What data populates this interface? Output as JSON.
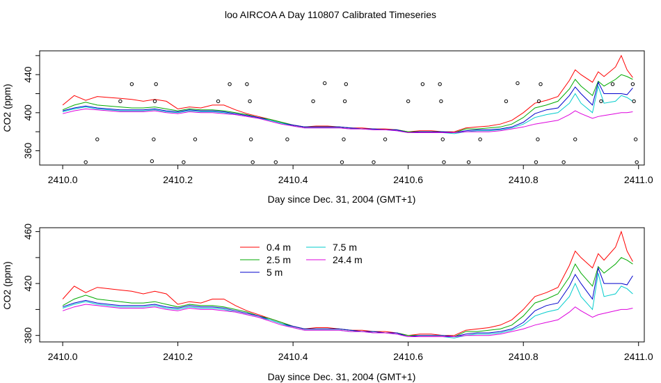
{
  "title": "loo AIRCOA A  Day 110807  Calibrated Timeseries",
  "chart_data": [
    {
      "type": "scatter",
      "xlabel": "Day since Dec. 31, 2004 (GMT+1)",
      "ylabel": "CO2 (ppm)",
      "xlim": [
        2409.96,
        2411.01
      ],
      "ylim": [
        345,
        465
      ],
      "xticks": [
        "2410.0",
        "2410.2",
        "2410.4",
        "2410.6",
        "2410.8",
        "2411.0"
      ],
      "yticks": [
        "360",
        "400",
        "440"
      ],
      "series_ref": "shared_series",
      "points": [
        [
          2410.04,
          348
        ],
        [
          2410.06,
          372
        ],
        [
          2410.1,
          412
        ],
        [
          2410.12,
          430
        ],
        [
          2410.155,
          349
        ],
        [
          2410.158,
          372
        ],
        [
          2410.16,
          412
        ],
        [
          2410.162,
          430
        ],
        [
          2410.21,
          348
        ],
        [
          2410.23,
          372
        ],
        [
          2410.27,
          412
        ],
        [
          2410.29,
          430
        ],
        [
          2410.32,
          430
        ],
        [
          2410.325,
          412
        ],
        [
          2410.327,
          372
        ],
        [
          2410.33,
          348
        ],
        [
          2410.37,
          348
        ],
        [
          2410.39,
          372
        ],
        [
          2410.435,
          412
        ],
        [
          2410.455,
          431
        ],
        [
          2410.485,
          348
        ],
        [
          2410.488,
          372
        ],
        [
          2410.49,
          412
        ],
        [
          2410.492,
          430
        ],
        [
          2410.54,
          348
        ],
        [
          2410.56,
          372
        ],
        [
          2410.6,
          412
        ],
        [
          2410.625,
          430
        ],
        [
          2410.655,
          430
        ],
        [
          2410.657,
          412
        ],
        [
          2410.66,
          372
        ],
        [
          2410.662,
          348
        ],
        [
          2410.705,
          348
        ],
        [
          2410.725,
          372
        ],
        [
          2410.77,
          412
        ],
        [
          2410.79,
          431
        ],
        [
          2410.822,
          348
        ],
        [
          2410.825,
          372
        ],
        [
          2410.827,
          412
        ],
        [
          2410.83,
          430
        ],
        [
          2410.87,
          348
        ],
        [
          2410.89,
          372
        ],
        [
          2410.935,
          412
        ],
        [
          2410.955,
          430
        ],
        [
          2410.99,
          430
        ],
        [
          2410.992,
          412
        ],
        [
          2410.995,
          372
        ],
        [
          2410.997,
          348
        ]
      ]
    },
    {
      "type": "line",
      "xlabel": "Day since Dec. 31, 2004 (GMT+1)",
      "ylabel": "CO2 (ppm)",
      "xlim": [
        2409.96,
        2411.01
      ],
      "ylim": [
        375,
        463
      ],
      "xticks": [
        "2410.0",
        "2410.2",
        "2410.4",
        "2410.6",
        "2410.8",
        "2411.0"
      ],
      "yticks": [
        "380",
        "420",
        "460"
      ],
      "legend": "top-left",
      "series_ref": "shared_series"
    }
  ],
  "shared_series": {
    "x": [
      2410.0,
      2410.02,
      2410.04,
      2410.06,
      2410.08,
      2410.1,
      2410.12,
      2410.14,
      2410.16,
      2410.18,
      2410.2,
      2410.22,
      2410.24,
      2410.26,
      2410.28,
      2410.3,
      2410.32,
      2410.34,
      2410.36,
      2410.38,
      2410.4,
      2410.42,
      2410.44,
      2410.46,
      2410.48,
      2410.5,
      2410.52,
      2410.54,
      2410.56,
      2410.58,
      2410.6,
      2410.62,
      2410.64,
      2410.66,
      2410.68,
      2410.7,
      2410.72,
      2410.74,
      2410.76,
      2410.78,
      2410.8,
      2410.82,
      2410.84,
      2410.86,
      2410.88,
      2410.89,
      2410.9,
      2410.92,
      2410.93,
      2410.94,
      2410.96,
      2410.97,
      2410.98,
      2410.99
    ],
    "series": [
      {
        "name": "0.4 m",
        "color": "#ff0000",
        "values": [
          408,
          418,
          413,
          417,
          416,
          415,
          414,
          412,
          414,
          412,
          404,
          406,
          405,
          408,
          408,
          403,
          399,
          396,
          393,
          390,
          387,
          385,
          386,
          386,
          385,
          384,
          384,
          383,
          383,
          382,
          380,
          381,
          381,
          380,
          380,
          384,
          385,
          386,
          388,
          392,
          400,
          410,
          413,
          417,
          434,
          445,
          440,
          432,
          443,
          438,
          448,
          460,
          445,
          437
        ]
      },
      {
        "name": "2.5 m",
        "color": "#00aa00",
        "values": [
          403,
          408,
          411,
          408,
          407,
          406,
          405,
          405,
          406,
          404,
          402,
          404,
          403,
          403,
          402,
          400,
          398,
          395,
          393,
          390,
          387,
          385,
          385,
          385,
          385,
          384,
          383,
          383,
          382,
          382,
          380,
          380,
          380,
          380,
          379,
          383,
          383,
          384,
          385,
          388,
          395,
          405,
          408,
          412,
          425,
          435,
          428,
          418,
          433,
          428,
          435,
          440,
          438,
          435
        ]
      },
      {
        "name": "5 m",
        "color": "#0000cc",
        "values": [
          402,
          405,
          407,
          405,
          404,
          403,
          403,
          403,
          404,
          402,
          401,
          403,
          402,
          402,
          401,
          399,
          397,
          395,
          392,
          389,
          387,
          385,
          385,
          385,
          385,
          384,
          383,
          383,
          382,
          382,
          379,
          380,
          380,
          380,
          379,
          381,
          382,
          382,
          383,
          385,
          390,
          399,
          403,
          405,
          418,
          427,
          420,
          408,
          432,
          420,
          420,
          420,
          419,
          426
        ]
      },
      {
        "name": "7.5 m",
        "color": "#00cccc",
        "values": [
          401,
          404,
          406,
          404,
          403,
          402,
          402,
          402,
          403,
          401,
          400,
          402,
          401,
          401,
          400,
          398,
          396,
          394,
          392,
          389,
          386,
          384,
          384,
          384,
          384,
          383,
          383,
          382,
          382,
          381,
          379,
          379,
          379,
          379,
          378,
          380,
          381,
          381,
          382,
          384,
          388,
          395,
          398,
          400,
          410,
          420,
          410,
          400,
          428,
          410,
          412,
          418,
          416,
          412
        ]
      },
      {
        "name": "24.4 m",
        "color": "#dd00dd",
        "values": [
          399,
          402,
          404,
          403,
          402,
          401,
          401,
          401,
          402,
          400,
          399,
          401,
          400,
          400,
          399,
          398,
          396,
          394,
          391,
          388,
          386,
          384,
          384,
          384,
          384,
          383,
          383,
          382,
          382,
          381,
          379,
          379,
          379,
          379,
          379,
          380,
          380,
          380,
          381,
          383,
          385,
          388,
          390,
          392,
          398,
          402,
          399,
          394,
          396,
          397,
          399,
          400,
          400,
          401
        ]
      }
    ]
  }
}
